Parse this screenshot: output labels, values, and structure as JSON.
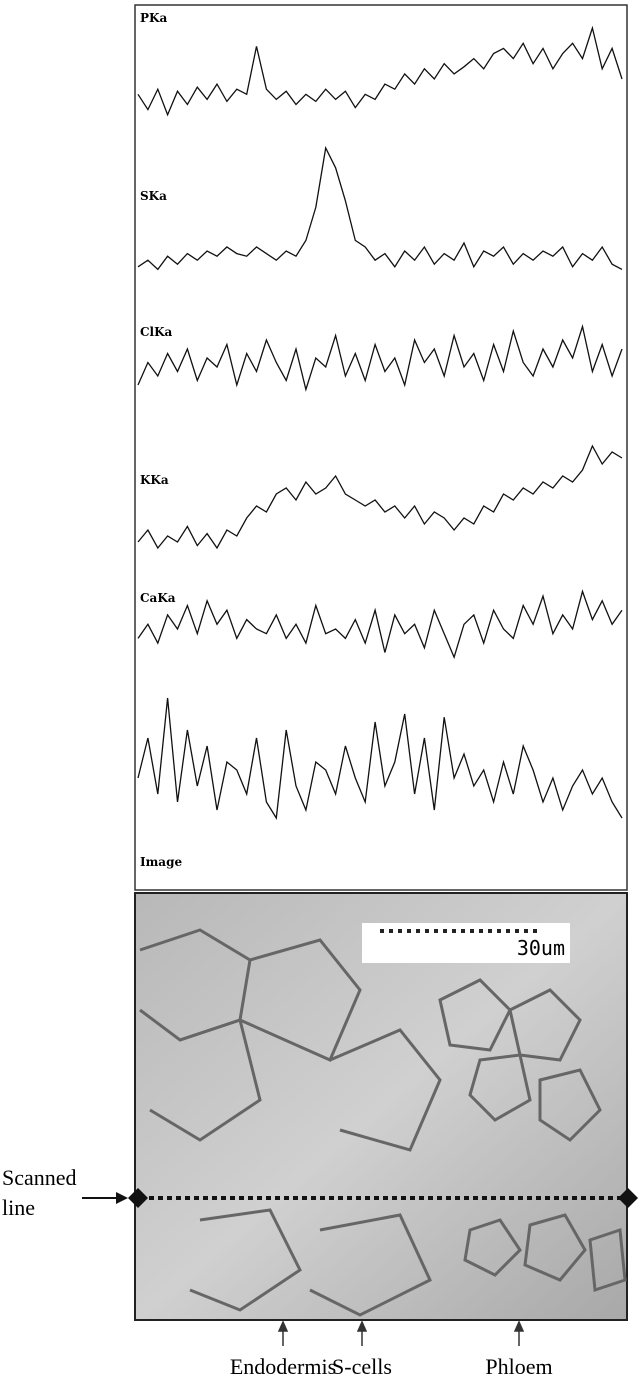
{
  "chart_data": [
    {
      "type": "line",
      "title": "PKa",
      "ylim": [
        0,
        100
      ],
      "color": "#111111",
      "values": [
        35,
        20,
        40,
        15,
        38,
        25,
        42,
        30,
        45,
        28,
        40,
        35,
        82,
        40,
        30,
        38,
        25,
        35,
        28,
        40,
        30,
        38,
        22,
        35,
        30,
        45,
        40,
        55,
        45,
        60,
        50,
        65,
        55,
        62,
        70,
        60,
        75,
        80,
        70,
        85,
        65,
        80,
        60,
        75,
        85,
        70,
        100,
        60,
        80,
        50
      ]
    },
    {
      "type": "line",
      "title": "SKa",
      "ylim": [
        0,
        100
      ],
      "color": "#111111",
      "values": [
        10,
        15,
        8,
        18,
        12,
        20,
        15,
        22,
        18,
        25,
        20,
        18,
        25,
        20,
        15,
        22,
        18,
        30,
        55,
        100,
        85,
        60,
        30,
        25,
        15,
        20,
        10,
        22,
        15,
        25,
        12,
        20,
        15,
        28,
        10,
        22,
        18,
        25,
        12,
        20,
        15,
        22,
        18,
        25,
        10,
        20,
        15,
        25,
        12,
        8
      ]
    },
    {
      "type": "line",
      "title": "ClKa",
      "ylim": [
        0,
        100
      ],
      "color": "#111111",
      "values": [
        30,
        55,
        40,
        65,
        45,
        70,
        35,
        60,
        50,
        75,
        30,
        65,
        45,
        80,
        55,
        35,
        70,
        25,
        60,
        50,
        85,
        40,
        65,
        35,
        75,
        45,
        60,
        30,
        80,
        55,
        70,
        40,
        85,
        50,
        65,
        35,
        75,
        45,
        90,
        55,
        40,
        70,
        50,
        80,
        60,
        95,
        45,
        75,
        40,
        70
      ]
    },
    {
      "type": "line",
      "title": "KKa",
      "ylim": [
        0,
        100
      ],
      "color": "#111111",
      "values": [
        15,
        25,
        10,
        20,
        15,
        28,
        12,
        22,
        10,
        25,
        20,
        35,
        45,
        40,
        55,
        60,
        50,
        65,
        55,
        60,
        70,
        55,
        50,
        45,
        50,
        40,
        45,
        35,
        45,
        30,
        40,
        35,
        25,
        35,
        30,
        45,
        40,
        55,
        50,
        60,
        55,
        65,
        60,
        70,
        65,
        75,
        95,
        80,
        90,
        85
      ]
    },
    {
      "type": "line",
      "title": "CaKa",
      "ylim": [
        0,
        100
      ],
      "color": "#111111",
      "values": [
        40,
        55,
        35,
        65,
        50,
        75,
        45,
        80,
        55,
        70,
        40,
        60,
        50,
        45,
        65,
        40,
        55,
        35,
        75,
        45,
        50,
        40,
        60,
        35,
        70,
        25,
        65,
        45,
        55,
        30,
        70,
        45,
        20,
        55,
        65,
        35,
        70,
        50,
        40,
        75,
        55,
        85,
        45,
        65,
        50,
        90,
        60,
        80,
        55,
        70
      ]
    },
    {
      "type": "line",
      "title": "Image",
      "ylim": [
        0,
        100
      ],
      "color": "#111111",
      "values": [
        50,
        75,
        40,
        100,
        35,
        80,
        45,
        70,
        30,
        60,
        55,
        40,
        75,
        35,
        25,
        80,
        45,
        30,
        60,
        55,
        40,
        70,
        50,
        35,
        85,
        45,
        60,
        90,
        40,
        75,
        30,
        88,
        50,
        65,
        45,
        55,
        35,
        60,
        40,
        70,
        55,
        35,
        50,
        30,
        45,
        55,
        40,
        50,
        35,
        25
      ]
    }
  ],
  "figure": {
    "scale_bar": "30um",
    "scanned_line": [
      "Scanned",
      "line"
    ],
    "markers": [
      "Endodermis",
      "S-cells",
      "Phloem"
    ]
  }
}
